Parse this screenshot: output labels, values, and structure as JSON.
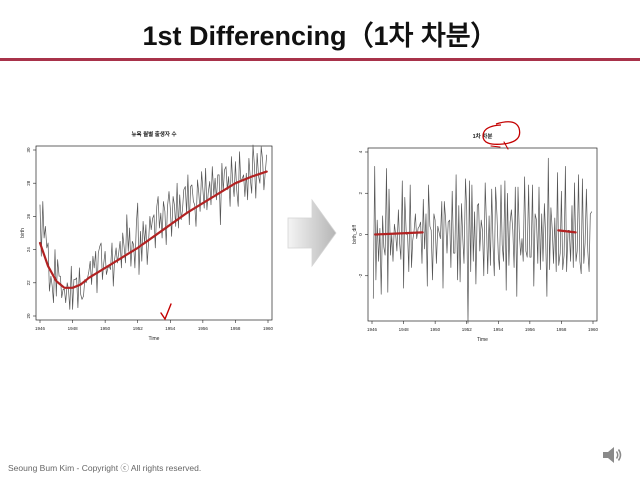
{
  "slide": {
    "title": "1st Differencing（1차 차분）",
    "footer": "Seoung Bum Kim - Copyright ⓒ All rights reserved.",
    "accent_color": "#a8324a",
    "icon": "speaker-icon"
  },
  "chart_data": [
    {
      "type": "line",
      "title": "뉴욕 월별 출생자 수",
      "xlabel": "Time",
      "ylabel": "birth",
      "xlim": [
        1946,
        1960
      ],
      "ylim": [
        20,
        30
      ],
      "xticks": [
        1946,
        1948,
        1950,
        1952,
        1954,
        1956,
        1958,
        1960
      ],
      "yticks": [
        20,
        22,
        24,
        26,
        28,
        30
      ],
      "series": [
        {
          "color": "#555555",
          "x": [
            1946.0,
            1946.08,
            1946.17,
            1946.25,
            1946.33,
            1946.42,
            1946.5,
            1946.58,
            1946.67,
            1946.75,
            1946.83,
            1946.92,
            1947.0,
            1947.08,
            1947.17,
            1947.25,
            1947.33,
            1947.42,
            1947.5,
            1947.58,
            1947.67,
            1947.75,
            1947.83,
            1947.92,
            1948.0,
            1948.08,
            1948.17,
            1948.25,
            1948.33,
            1948.42,
            1948.5,
            1948.58,
            1948.67,
            1948.75,
            1948.83,
            1948.92,
            1949.0,
            1949.08,
            1949.17,
            1949.25,
            1949.33,
            1949.42,
            1949.5,
            1949.58,
            1949.67,
            1949.75,
            1949.83,
            1949.92,
            1950.0,
            1950.08,
            1950.17,
            1950.25,
            1950.33,
            1950.42,
            1950.5,
            1950.58,
            1950.67,
            1950.75,
            1950.83,
            1950.92,
            1951.0,
            1951.08,
            1951.17,
            1951.25,
            1951.33,
            1951.42,
            1951.5,
            1951.58,
            1951.67,
            1951.75,
            1951.83,
            1951.92,
            1952.0,
            1952.08,
            1952.17,
            1952.25,
            1952.33,
            1952.42,
            1952.5,
            1952.58,
            1952.67,
            1952.75,
            1952.83,
            1952.92,
            1953.0,
            1953.08,
            1953.17,
            1953.25,
            1953.33,
            1953.42,
            1953.5,
            1953.58,
            1953.67,
            1953.75,
            1953.83,
            1953.92,
            1954.0,
            1954.08,
            1954.17,
            1954.25,
            1954.33,
            1954.42,
            1954.5,
            1954.58,
            1954.67,
            1954.75,
            1954.83,
            1954.92,
            1955.0,
            1955.08,
            1955.17,
            1955.25,
            1955.33,
            1955.42,
            1955.5,
            1955.58,
            1955.67,
            1955.75,
            1955.83,
            1955.92,
            1956.0,
            1956.08,
            1956.17,
            1956.25,
            1956.33,
            1956.42,
            1956.5,
            1956.58,
            1956.67,
            1956.75,
            1956.83,
            1956.92,
            1957.0,
            1957.08,
            1957.17,
            1957.25,
            1957.33,
            1957.42,
            1957.5,
            1957.58,
            1957.67,
            1957.75,
            1957.83,
            1957.92,
            1958.0,
            1958.08,
            1958.17,
            1958.25,
            1958.33,
            1958.42,
            1958.5,
            1958.58,
            1958.67,
            1958.75,
            1958.83,
            1958.92,
            1959.0,
            1959.08,
            1959.17,
            1959.25,
            1959.33,
            1959.42,
            1959.5,
            1959.58,
            1959.67,
            1959.75,
            1959.83,
            1959.92
          ],
          "values": [
            26.7,
            23.6,
            26.9,
            24.7,
            25.4,
            24.1,
            24.4,
            21.5,
            22.4,
            21.8,
            20.8,
            24.0,
            21.2,
            23.4,
            22.4,
            22.4,
            21.1,
            21.6,
            21.6,
            20.8,
            22.0,
            21.6,
            20.4,
            23.0,
            20.4,
            22.2,
            22.2,
            22.3,
            20.5,
            22.9,
            21.3,
            21.0,
            21.2,
            22.2,
            22.0,
            22.3,
            22.7,
            23.3,
            21.9,
            23.6,
            22.9,
            23.9,
            21.4,
            23.8,
            24.2,
            24.4,
            22.2,
            23.2,
            23.9,
            22.5,
            22.9,
            23.0,
            22.8,
            24.4,
            21.8,
            23.4,
            24.1,
            23.2,
            23.8,
            24.5,
            22.9,
            25.0,
            24.1,
            23.2,
            26.1,
            23.9,
            25.3,
            23.0,
            24.5,
            24.3,
            22.9,
            25.6,
            26.8,
            22.5,
            25.1,
            23.3,
            25.7,
            24.4,
            25.5,
            23.1,
            24.5,
            26.0,
            25.2,
            25.9,
            26.1,
            24.1,
            26.6,
            27.2,
            25.3,
            26.2,
            24.7,
            26.9,
            26.3,
            24.3,
            26.6,
            27.5,
            26.5,
            24.8,
            27.2,
            26.7,
            25.4,
            28.0,
            25.3,
            27.3,
            25.8,
            26.4,
            27.6,
            27.8,
            26.2,
            28.5,
            25.5,
            27.8,
            27.9,
            26.9,
            26.7,
            25.4,
            28.2,
            27.4,
            26.3,
            28.7,
            27.6,
            26.5,
            28.9,
            26.4,
            27.4,
            28.1,
            26.7,
            29.0,
            27.3,
            28.3,
            27.0,
            28.5,
            28.5,
            25.5,
            29.2,
            27.5,
            28.8,
            29.0,
            27.6,
            28.4,
            26.6,
            29.6,
            28.1,
            27.2,
            29.3,
            27.6,
            26.6,
            29.9,
            28.1,
            28.3,
            28.5,
            27.2,
            28.6,
            27.0,
            29.5,
            28.2,
            27.4,
            30.3,
            29.0,
            27.1,
            29.8,
            28.4,
            28.0,
            30.2,
            29.4,
            27.6,
            28.6,
            29.7
          ]
        },
        {
          "color": "#b22222",
          "x": [
            1946.0,
            1946.5,
            1947.0,
            1947.5,
            1948.0,
            1948.5,
            1949.0,
            1950.0,
            1951.0,
            1952.0,
            1953.0,
            1954.0,
            1955.0,
            1956.0,
            1957.0,
            1958.0,
            1959.0,
            1959.92
          ],
          "values": [
            24.4,
            23.0,
            22.1,
            21.7,
            21.7,
            21.9,
            22.3,
            22.9,
            23.5,
            24.1,
            24.8,
            25.5,
            26.2,
            26.8,
            27.4,
            28.0,
            28.4,
            28.7
          ]
        }
      ]
    },
    {
      "type": "line",
      "title": "1차 차분",
      "xlabel": "Time",
      "ylabel": "birth_diff",
      "xlim": [
        1946,
        1960
      ],
      "ylim": [
        -4,
        4
      ],
      "xticks": [
        1946,
        1948,
        1950,
        1952,
        1954,
        1956,
        1958,
        1960
      ],
      "yticks": [
        -2,
        0,
        2,
        4
      ],
      "series": [
        {
          "color": "#555555",
          "x": [
            1946.08,
            1946.17,
            1946.25,
            1946.33,
            1946.42,
            1946.5,
            1946.58,
            1946.67,
            1946.75,
            1946.83,
            1946.92,
            1947.0,
            1947.08,
            1947.17,
            1947.25,
            1947.33,
            1947.42,
            1947.5,
            1947.58,
            1947.67,
            1947.75,
            1947.83,
            1947.92,
            1948.0,
            1948.08,
            1948.17,
            1948.25,
            1948.33,
            1948.42,
            1948.5,
            1948.58,
            1948.67,
            1948.75,
            1948.83,
            1948.92,
            1949.0,
            1949.08,
            1949.17,
            1949.25,
            1949.33,
            1949.42,
            1949.5,
            1949.58,
            1949.67,
            1949.75,
            1949.83,
            1949.92,
            1950.0,
            1950.08,
            1950.17,
            1950.25,
            1950.33,
            1950.42,
            1950.5,
            1950.58,
            1950.67,
            1950.75,
            1950.83,
            1950.92,
            1951.0,
            1951.08,
            1951.17,
            1951.25,
            1951.33,
            1951.42,
            1951.5,
            1951.58,
            1951.67,
            1951.75,
            1951.83,
            1951.92,
            1952.0,
            1952.08,
            1952.17,
            1952.25,
            1952.33,
            1952.42,
            1952.5,
            1952.58,
            1952.67,
            1952.75,
            1952.83,
            1952.92,
            1953.0,
            1953.08,
            1953.17,
            1953.25,
            1953.33,
            1953.42,
            1953.5,
            1953.58,
            1953.67,
            1953.75,
            1953.83,
            1953.92,
            1954.0,
            1954.08,
            1954.17,
            1954.25,
            1954.33,
            1954.42,
            1954.5,
            1954.58,
            1954.67,
            1954.75,
            1954.83,
            1954.92,
            1955.0,
            1955.08,
            1955.17,
            1955.25,
            1955.33,
            1955.42,
            1955.5,
            1955.58,
            1955.67,
            1955.75,
            1955.83,
            1955.92,
            1956.0,
            1956.08,
            1956.17,
            1956.25,
            1956.33,
            1956.42,
            1956.5,
            1956.58,
            1956.67,
            1956.75,
            1956.83,
            1956.92,
            1957.0,
            1957.08,
            1957.17,
            1957.25,
            1957.33,
            1957.42,
            1957.5,
            1957.58,
            1957.67,
            1957.75,
            1957.83,
            1957.92,
            1958.0,
            1958.08,
            1958.17,
            1958.25,
            1958.33,
            1958.42,
            1958.5,
            1958.58,
            1958.67,
            1958.75,
            1958.83,
            1958.92,
            1959.0,
            1959.08,
            1959.17,
            1959.25,
            1959.33,
            1959.42,
            1959.5,
            1959.58,
            1959.67,
            1959.75,
            1959.83,
            1959.92
          ],
          "values": [
            -3.1,
            3.3,
            -2.2,
            0.7,
            -1.3,
            0.3,
            -2.9,
            0.9,
            -0.6,
            -1.0,
            3.2,
            -2.8,
            2.2,
            -1.0,
            0.0,
            -1.3,
            0.5,
            0.0,
            -0.8,
            1.2,
            -0.4,
            -1.2,
            2.6,
            -2.6,
            1.8,
            0.0,
            0.1,
            -1.8,
            2.4,
            -1.6,
            -0.3,
            0.2,
            1.0,
            -0.2,
            0.3,
            0.4,
            0.6,
            -1.4,
            1.7,
            -0.7,
            1.0,
            -2.5,
            2.4,
            0.4,
            0.2,
            -2.2,
            1.0,
            0.7,
            -1.4,
            0.4,
            0.1,
            -0.2,
            1.6,
            -2.6,
            1.6,
            0.7,
            -0.9,
            0.6,
            0.7,
            -1.6,
            2.1,
            -0.9,
            -0.9,
            2.9,
            -2.2,
            1.4,
            -2.3,
            1.5,
            -0.2,
            -1.4,
            2.7,
            1.2,
            -4.3,
            2.6,
            -1.8,
            2.4,
            -1.3,
            1.1,
            -2.4,
            1.4,
            1.5,
            -0.8,
            0.7,
            0.2,
            -2.0,
            2.5,
            0.6,
            -1.9,
            0.9,
            -1.5,
            2.2,
            -0.6,
            -2.0,
            2.3,
            0.9,
            -1.0,
            -1.7,
            2.4,
            -0.5,
            -1.3,
            2.6,
            -2.7,
            2.0,
            -1.5,
            0.6,
            1.2,
            0.2,
            -1.6,
            2.3,
            -3.0,
            2.3,
            0.1,
            -1.0,
            -0.2,
            -1.3,
            2.8,
            -0.8,
            -1.1,
            2.4,
            -1.1,
            -1.1,
            2.4,
            -2.5,
            1.0,
            0.7,
            -1.4,
            2.3,
            -1.7,
            1.0,
            -1.3,
            1.5,
            0.0,
            -3.0,
            3.7,
            -1.7,
            1.3,
            0.2,
            -1.4,
            0.8,
            -1.8,
            3.0,
            -1.5,
            -0.9,
            2.1,
            -1.7,
            -1.0,
            3.3,
            -1.8,
            0.2,
            0.2,
            -1.3,
            1.4,
            -1.6,
            2.5,
            -1.3,
            -0.8,
            2.9,
            -1.3,
            -1.9,
            2.7,
            -1.4,
            -0.4,
            2.2,
            -0.8,
            -1.8,
            1.0,
            1.1
          ]
        },
        {
          "color": "#b22222",
          "x": [
            1946.2,
            1949.2
          ],
          "values": [
            0.0,
            0.1
          ]
        },
        {
          "color": "#b22222",
          "x": [
            1957.8,
            1958.9
          ],
          "values": [
            0.2,
            0.1
          ]
        }
      ]
    }
  ]
}
